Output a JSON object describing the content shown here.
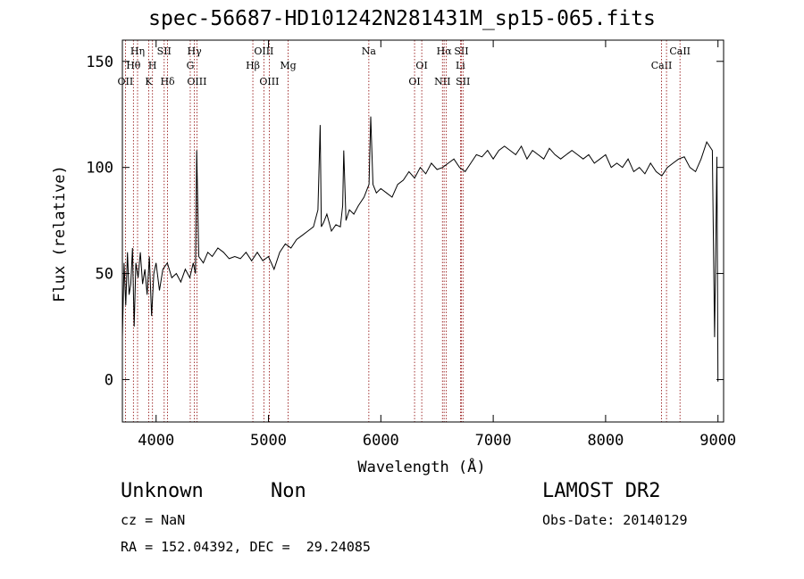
{
  "chart_data": {
    "type": "line",
    "title": "spec-56687-HD101242N281431M_sp15-065.fits",
    "xlabel": "Wavelength (Å)",
    "ylabel": "Flux (relative)",
    "xlim": [
      3700,
      9050
    ],
    "ylim": [
      -20,
      160
    ],
    "xticks": [
      4000,
      5000,
      6000,
      7000,
      8000,
      9000
    ],
    "yticks": [
      0,
      50,
      100,
      150
    ],
    "grid": false,
    "line_color": "#000000",
    "marker_color": "#8b0000",
    "series": [
      {
        "x": [
          3700,
          3715,
          3730,
          3745,
          3760,
          3775,
          3790,
          3805,
          3820,
          3840,
          3860,
          3880,
          3900,
          3920,
          3940,
          3960,
          3980,
          4000,
          4030,
          4060,
          4100,
          4140,
          4180,
          4220,
          4260,
          4300,
          4330,
          4350,
          4361,
          4380,
          4420,
          4460,
          4500,
          4550,
          4600,
          4650,
          4700,
          4750,
          4800,
          4850,
          4900,
          4950,
          5000,
          5050,
          5100,
          5150,
          5200,
          5250,
          5300,
          5350,
          5400,
          5440,
          5460,
          5470,
          5490,
          5520,
          5560,
          5600,
          5640,
          5660,
          5670,
          5690,
          5720,
          5760,
          5800,
          5850,
          5880,
          5895,
          5910,
          5930,
          5960,
          6000,
          6050,
          6100,
          6150,
          6200,
          6250,
          6300,
          6350,
          6400,
          6450,
          6500,
          6550,
          6600,
          6650,
          6700,
          6750,
          6800,
          6850,
          6900,
          6950,
          7000,
          7050,
          7100,
          7150,
          7200,
          7250,
          7300,
          7350,
          7400,
          7450,
          7500,
          7550,
          7600,
          7650,
          7700,
          7750,
          7800,
          7850,
          7900,
          7950,
          8000,
          8050,
          8100,
          8150,
          8200,
          8250,
          8300,
          8350,
          8400,
          8450,
          8500,
          8550,
          8600,
          8650,
          8700,
          8750,
          8800,
          8850,
          8900,
          8950,
          8970,
          8990,
          9000
        ],
        "values": [
          20,
          55,
          35,
          60,
          40,
          45,
          62,
          25,
          55,
          48,
          60,
          45,
          52,
          40,
          58,
          30,
          50,
          55,
          42,
          52,
          55,
          48,
          50,
          46,
          52,
          48,
          55,
          50,
          108,
          58,
          55,
          60,
          58,
          62,
          60,
          57,
          58,
          57,
          60,
          56,
          60,
          56,
          58,
          52,
          60,
          64,
          62,
          66,
          68,
          70,
          72,
          80,
          120,
          72,
          74,
          78,
          70,
          73,
          72,
          82,
          108,
          75,
          80,
          78,
          82,
          86,
          90,
          92,
          124,
          92,
          88,
          90,
          88,
          86,
          92,
          94,
          98,
          95,
          100,
          97,
          102,
          99,
          100,
          102,
          104,
          100,
          98,
          102,
          106,
          105,
          108,
          104,
          108,
          110,
          108,
          106,
          110,
          104,
          108,
          106,
          104,
          109,
          106,
          104,
          106,
          108,
          106,
          104,
          106,
          102,
          104,
          106,
          100,
          102,
          100,
          104,
          98,
          100,
          97,
          102,
          98,
          96,
          100,
          102,
          104,
          105,
          100,
          98,
          104,
          112,
          108,
          20,
          105,
          -1
        ]
      }
    ],
    "line_markers": [
      {
        "x": 3727,
        "label": "OII",
        "row": 3,
        "align": "middle"
      },
      {
        "x": 3798,
        "label": "Hθ",
        "row": 2,
        "align": "middle"
      },
      {
        "x": 3835,
        "label": "Hη",
        "row": 1,
        "align": "middle"
      },
      {
        "x": 3934,
        "label": "K",
        "row": 3,
        "align": "middle"
      },
      {
        "x": 3968,
        "label": "H",
        "row": 2,
        "align": "middle"
      },
      {
        "x": 4072,
        "label": "SII",
        "row": 1,
        "align": "middle"
      },
      {
        "x": 4102,
        "label": "Hδ",
        "row": 3,
        "align": "middle"
      },
      {
        "x": 4304,
        "label": "G",
        "row": 2,
        "align": "middle"
      },
      {
        "x": 4341,
        "label": "Hγ",
        "row": 1,
        "align": "middle"
      },
      {
        "x": 4363,
        "label": "OIII",
        "row": 3,
        "align": "middle"
      },
      {
        "x": 4861,
        "label": "Hβ",
        "row": 2,
        "align": "middle"
      },
      {
        "x": 4959,
        "label": "OIII",
        "row": 1,
        "align": "middle"
      },
      {
        "x": 5007,
        "label": "OIII",
        "row": 3,
        "align": "middle"
      },
      {
        "x": 5175,
        "label": "Mg",
        "row": 2,
        "align": "middle"
      },
      {
        "x": 5893,
        "label": "Na",
        "row": 1,
        "align": "middle"
      },
      {
        "x": 6300,
        "label": "OI",
        "row": 3,
        "align": "middle"
      },
      {
        "x": 6364,
        "label": "OI",
        "row": 2,
        "align": "middle"
      },
      {
        "x": 6548,
        "label": "NII",
        "row": 3,
        "align": "middle"
      },
      {
        "x": 6563,
        "label": "Hα",
        "row": 1,
        "align": "middle"
      },
      {
        "x": 6583,
        "label": "",
        "row": 0,
        "align": "middle"
      },
      {
        "x": 6708,
        "label": "Li",
        "row": 2,
        "align": "middle"
      },
      {
        "x": 6717,
        "label": "SII",
        "row": 1,
        "align": "middle"
      },
      {
        "x": 6731,
        "label": "SII",
        "row": 3,
        "align": "middle"
      },
      {
        "x": 8498,
        "label": "CaII",
        "row": 2,
        "align": "middle"
      },
      {
        "x": 8542,
        "label": "",
        "row": 0,
        "align": "middle"
      },
      {
        "x": 8662,
        "label": "CaII",
        "row": 1,
        "align": "middle"
      }
    ]
  },
  "info": {
    "object_class": "Unknown",
    "object_subclass": "Non",
    "survey": "LAMOST DR2",
    "cz": "cz = NaN",
    "obs_date": "Obs-Date: 20140129",
    "coords": "RA = 152.04392, DEC =  29.24085"
  }
}
